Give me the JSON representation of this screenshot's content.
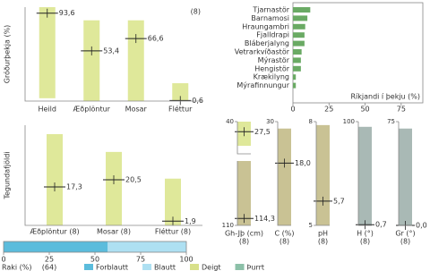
{
  "chart_data": [
    {
      "type": "range-bar",
      "ylabel": "Gróðurþekja (%)",
      "annotation": "(8)",
      "color": "#dfe89a",
      "categories": [
        "Heild",
        "Æðplöntur",
        "Mosar",
        "Fléttur"
      ],
      "low": [
        3,
        0,
        0,
        0
      ],
      "high": [
        100,
        86,
        86,
        19
      ],
      "values": [
        93.6,
        53.4,
        66.6,
        0.6
      ],
      "value_labels": [
        "93,6",
        "53,4",
        "66,6",
        "0,6"
      ],
      "ylim": [
        0,
        100
      ]
    },
    {
      "type": "hbar",
      "xlabel": "Ríkjandi í þekju (%)",
      "color": "#6aaa64",
      "categories": [
        "Tjarnastör",
        "Barnamosi",
        "Hraungambri",
        "Fjalldrapi",
        "Bláberjalyng",
        "Vetrarkvíðastör",
        "Mýrastör",
        "Hengistör",
        "Krækilyng",
        "Mýrafinnungur"
      ],
      "values": [
        12,
        10,
        8.5,
        8,
        8,
        6,
        5.5,
        5.5,
        2,
        2
      ],
      "xlim": [
        0,
        90
      ],
      "xticks": [
        0,
        25,
        50,
        75
      ]
    },
    {
      "type": "range-bar",
      "ylabel": "Tegundafjöldi",
      "color": "#dfe89a",
      "categories": [
        "Æðplöntur (8)",
        "Mosar (8)",
        "Fléttur (8)"
      ],
      "low": [
        0,
        0,
        0
      ],
      "high": [
        41,
        33,
        21
      ],
      "values": [
        17.3,
        20.5,
        1.9
      ],
      "value_labels": [
        "17,3",
        "20,5",
        "1,9"
      ],
      "ylim": [
        0,
        45
      ]
    },
    {
      "type": "range-bar",
      "color": "#dfe89a",
      "categories": [
        null
      ],
      "low": [
        10
      ],
      "high": [
        40
      ],
      "values": [
        27.5
      ],
      "value_labels": [
        "27,5"
      ],
      "ylim": [
        0,
        40
      ],
      "yticks": [
        40
      ]
    },
    {
      "type": "range-bar",
      "color": "#c9c294",
      "categories": [
        "Gh-Jþ (cm)"
      ],
      "notes": [
        "(8)"
      ],
      "low": [
        110
      ],
      "high": [
        150
      ],
      "values": [
        114.3
      ],
      "value_labels": [
        "114,3"
      ],
      "ylim": [
        110,
        150
      ],
      "yticks": [
        110
      ]
    },
    {
      "type": "range-bar",
      "color": "#c9c294",
      "categories": [
        "C (%)"
      ],
      "notes": [
        "(8)"
      ],
      "low": [
        0
      ],
      "high": [
        28
      ],
      "values": [
        18.0
      ],
      "value_labels": [
        "18,0"
      ],
      "ylim": [
        0,
        30
      ],
      "yticks": [
        30
      ]
    },
    {
      "type": "range-bar",
      "color": "#c9c294",
      "categories": [
        "pH"
      ],
      "notes": [
        "(8)"
      ],
      "low": [
        5
      ],
      "high": [
        7.9
      ],
      "values": [
        5.7
      ],
      "value_labels": [
        "5,7"
      ],
      "ylim": [
        5,
        8
      ],
      "yticks": [
        5,
        8
      ]
    },
    {
      "type": "range-bar",
      "color": "#a9b9b5",
      "categories": [
        "H (°)"
      ],
      "notes": [
        "(8)"
      ],
      "low": [
        0
      ],
      "high": [
        95
      ],
      "values": [
        0.7
      ],
      "value_labels": [
        "0,7"
      ],
      "ylim": [
        0,
        100
      ],
      "yticks": [
        100
      ]
    },
    {
      "type": "range-bar",
      "color": "#a9b9b5",
      "categories": [
        "Gr (°)"
      ],
      "notes": [
        "(8)"
      ],
      "low": [
        0
      ],
      "high": [
        70
      ],
      "values": [
        0.0
      ],
      "value_labels": [
        "0,0"
      ],
      "ylim": [
        0,
        75
      ],
      "yticks": [
        75
      ]
    },
    {
      "type": "stacked-hbar",
      "xlabel": "Raki (%)",
      "annotation": "(64)",
      "xlim": [
        0,
        100
      ],
      "xticks": [
        0,
        25,
        50,
        75,
        100
      ],
      "series": [
        {
          "name": "Forblautt",
          "color": "#5bbcdc",
          "values": [
            57
          ]
        },
        {
          "name": "Blautt",
          "color": "#aee0f2",
          "values": [
            43
          ]
        },
        {
          "name": "Deigt",
          "color": "#d8e08a",
          "values": [
            0
          ]
        },
        {
          "name": "Þurrt",
          "color": "#8cc0a8",
          "values": [
            0
          ]
        }
      ]
    }
  ]
}
